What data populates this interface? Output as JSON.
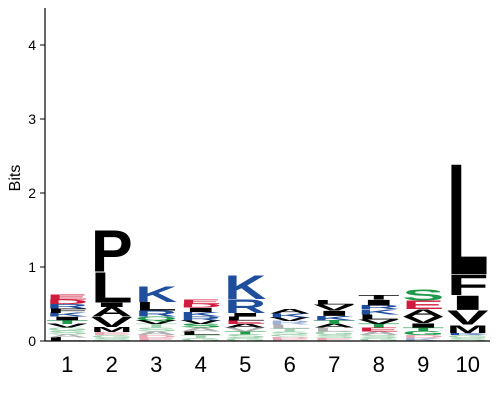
{
  "chart_data": {
    "type": "sequence-logo",
    "ylabel": "Bits",
    "ylim": [
      0,
      4.5
    ],
    "yticks": [
      "0",
      "1",
      "2",
      "3",
      "4"
    ],
    "positions": [
      "1",
      "2",
      "3",
      "4",
      "5",
      "6",
      "7",
      "8",
      "9",
      "10"
    ],
    "colors": {
      "hydrophobic": "#000000",
      "basic": "#1f4e9c",
      "acidic": "#d01c3c",
      "polar": "#1f9a4a",
      "faint_hydrophobic": "#b0b0b0",
      "faint_basic": "#9db0d6",
      "faint_acidic": "#eaa8b4",
      "faint_polar": "#9fd3af"
    },
    "stacks": [
      {
        "position": "1",
        "letters": [
          {
            "letter": "L",
            "bits": 0.05,
            "color": "#000000"
          },
          {
            "letter": "A",
            "bits": 0.04,
            "color": "#b0b0b0"
          },
          {
            "letter": "S",
            "bits": 0.05,
            "color": "#9fd3af"
          },
          {
            "letter": "G",
            "bits": 0.04,
            "color": "#9fd3af"
          },
          {
            "letter": "V",
            "bits": 0.05,
            "color": "#000000"
          },
          {
            "letter": "T",
            "bits": 0.05,
            "color": "#1f9a4a"
          },
          {
            "letter": "I",
            "bits": 0.05,
            "color": "#000000"
          },
          {
            "letter": "K",
            "bits": 0.05,
            "color": "#1f4e9c"
          },
          {
            "letter": "F",
            "bits": 0.06,
            "color": "#000000"
          },
          {
            "letter": "R",
            "bits": 0.06,
            "color": "#1f4e9c"
          },
          {
            "letter": "D",
            "bits": 0.06,
            "color": "#d01c3c"
          },
          {
            "letter": "E",
            "bits": 0.07,
            "color": "#d01c3c"
          }
        ]
      },
      {
        "position": "2",
        "letters": [
          {
            "letter": "S",
            "bits": 0.04,
            "color": "#9fd3af"
          },
          {
            "letter": "G",
            "bits": 0.04,
            "color": "#9fd3af"
          },
          {
            "letter": "E",
            "bits": 0.04,
            "color": "#eaa8b4"
          },
          {
            "letter": "M",
            "bits": 0.07,
            "color": "#000000"
          },
          {
            "letter": "V",
            "bits": 0.14,
            "color": "#000000"
          },
          {
            "letter": "A",
            "bits": 0.13,
            "color": "#000000"
          },
          {
            "letter": "I",
            "bits": 0.06,
            "color": "#000000"
          },
          {
            "letter": "L",
            "bits": 0.42,
            "color": "#000000"
          },
          {
            "letter": "P",
            "bits": 0.58,
            "color": "#000000"
          }
        ]
      },
      {
        "position": "3",
        "letters": [
          {
            "letter": "E",
            "bits": 0.04,
            "color": "#eaa8b4"
          },
          {
            "letter": "D",
            "bits": 0.04,
            "color": "#eaa8b4"
          },
          {
            "letter": "A",
            "bits": 0.05,
            "color": "#b0b0b0"
          },
          {
            "letter": "S",
            "bits": 0.05,
            "color": "#9fd3af"
          },
          {
            "letter": "T",
            "bits": 0.05,
            "color": "#9fd3af"
          },
          {
            "letter": "V",
            "bits": 0.05,
            "color": "#000000"
          },
          {
            "letter": "Q",
            "bits": 0.05,
            "color": "#1f9a4a"
          },
          {
            "letter": "R",
            "bits": 0.08,
            "color": "#1f4e9c"
          },
          {
            "letter": "L",
            "bits": 0.12,
            "color": "#000000"
          },
          {
            "letter": "K",
            "bits": 0.22,
            "color": "#1f4e9c"
          }
        ]
      },
      {
        "position": "4",
        "letters": [
          {
            "letter": "G",
            "bits": 0.04,
            "color": "#9fd3af"
          },
          {
            "letter": "T",
            "bits": 0.04,
            "color": "#9fd3af"
          },
          {
            "letter": "L",
            "bits": 0.05,
            "color": "#000000"
          },
          {
            "letter": "A",
            "bits": 0.05,
            "color": "#b0b0b0"
          },
          {
            "letter": "S",
            "bits": 0.05,
            "color": "#1f9a4a"
          },
          {
            "letter": "V",
            "bits": 0.05,
            "color": "#000000"
          },
          {
            "letter": "R",
            "bits": 0.05,
            "color": "#1f4e9c"
          },
          {
            "letter": "K",
            "bits": 0.06,
            "color": "#1f4e9c"
          },
          {
            "letter": "I",
            "bits": 0.06,
            "color": "#000000"
          },
          {
            "letter": "D",
            "bits": 0.05,
            "color": "#d01c3c"
          },
          {
            "letter": "E",
            "bits": 0.06,
            "color": "#d01c3c"
          }
        ]
      },
      {
        "position": "5",
        "letters": [
          {
            "letter": "G",
            "bits": 0.04,
            "color": "#9fd3af"
          },
          {
            "letter": "S",
            "bits": 0.05,
            "color": "#9fd3af"
          },
          {
            "letter": "T",
            "bits": 0.04,
            "color": "#1f9a4a"
          },
          {
            "letter": "V",
            "bits": 0.05,
            "color": "#b0b0b0"
          },
          {
            "letter": "A",
            "bits": 0.05,
            "color": "#000000"
          },
          {
            "letter": "E",
            "bits": 0.05,
            "color": "#d01c3c"
          },
          {
            "letter": "L",
            "bits": 0.05,
            "color": "#000000"
          },
          {
            "letter": "I",
            "bits": 0.05,
            "color": "#000000"
          },
          {
            "letter": "R",
            "bits": 0.19,
            "color": "#1f4e9c"
          },
          {
            "letter": "K",
            "bits": 0.33,
            "color": "#1f4e9c"
          }
        ]
      },
      {
        "position": "6",
        "letters": [
          {
            "letter": "E",
            "bits": 0.03,
            "color": "#eaa8b4"
          },
          {
            "letter": "D",
            "bits": 0.03,
            "color": "#eaa8b4"
          },
          {
            "letter": "G",
            "bits": 0.03,
            "color": "#9fd3af"
          },
          {
            "letter": "S",
            "bits": 0.04,
            "color": "#9fd3af"
          },
          {
            "letter": "T",
            "bits": 0.04,
            "color": "#9fd3af"
          },
          {
            "letter": "L",
            "bits": 0.05,
            "color": "#b0b0b0"
          },
          {
            "letter": "R",
            "bits": 0.05,
            "color": "#9db0d6"
          },
          {
            "letter": "V",
            "bits": 0.05,
            "color": "#000000"
          },
          {
            "letter": "K",
            "bits": 0.05,
            "color": "#1f4e9c"
          },
          {
            "letter": "A",
            "bits": 0.06,
            "color": "#000000"
          }
        ]
      },
      {
        "position": "7",
        "letters": [
          {
            "letter": "E",
            "bits": 0.04,
            "color": "#eaa8b4"
          },
          {
            "letter": "S",
            "bits": 0.04,
            "color": "#9fd3af"
          },
          {
            "letter": "G",
            "bits": 0.05,
            "color": "#9fd3af"
          },
          {
            "letter": "L",
            "bits": 0.05,
            "color": "#b0b0b0"
          },
          {
            "letter": "A",
            "bits": 0.05,
            "color": "#000000"
          },
          {
            "letter": "T",
            "bits": 0.05,
            "color": "#1f9a4a"
          },
          {
            "letter": "K",
            "bits": 0.06,
            "color": "#1f4e9c"
          },
          {
            "letter": "I",
            "bits": 0.07,
            "color": "#000000"
          },
          {
            "letter": "V",
            "bits": 0.08,
            "color": "#000000"
          },
          {
            "letter": "L",
            "bits": 0.06,
            "color": "#000000"
          }
        ]
      },
      {
        "position": "8",
        "letters": [
          {
            "letter": "G",
            "bits": 0.04,
            "color": "#9fd3af"
          },
          {
            "letter": "S",
            "bits": 0.04,
            "color": "#9fd3af"
          },
          {
            "letter": "A",
            "bits": 0.05,
            "color": "#b0b0b0"
          },
          {
            "letter": "E",
            "bits": 0.05,
            "color": "#d01c3c"
          },
          {
            "letter": "T",
            "bits": 0.05,
            "color": "#1f9a4a"
          },
          {
            "letter": "V",
            "bits": 0.06,
            "color": "#000000"
          },
          {
            "letter": "L",
            "bits": 0.07,
            "color": "#000000"
          },
          {
            "letter": "K",
            "bits": 0.07,
            "color": "#1f4e9c"
          },
          {
            "letter": "R",
            "bits": 0.05,
            "color": "#1f4e9c"
          },
          {
            "letter": "I",
            "bits": 0.08,
            "color": "#000000"
          },
          {
            "letter": "T",
            "bits": 0.06,
            "color": "#000000"
          }
        ]
      },
      {
        "position": "9",
        "letters": [
          {
            "letter": "K",
            "bits": 0.04,
            "color": "#9db0d6"
          },
          {
            "letter": "D",
            "bits": 0.04,
            "color": "#eaa8b4"
          },
          {
            "letter": "G",
            "bits": 0.05,
            "color": "#1f9a4a"
          },
          {
            "letter": "T",
            "bits": 0.05,
            "color": "#1f9a4a"
          },
          {
            "letter": "I",
            "bits": 0.06,
            "color": "#000000"
          },
          {
            "letter": "V",
            "bits": 0.09,
            "color": "#000000"
          },
          {
            "letter": "A",
            "bits": 0.1,
            "color": "#000000"
          },
          {
            "letter": "E",
            "bits": 0.12,
            "color": "#d01c3c"
          },
          {
            "letter": "S",
            "bits": 0.15,
            "color": "#1f9a4a"
          }
        ]
      },
      {
        "position": "10",
        "letters": [
          {
            "letter": "S",
            "bits": 0.04,
            "color": "#9fd3af"
          },
          {
            "letter": "G",
            "bits": 0.04,
            "color": "#9fd3af"
          },
          {
            "letter": "K",
            "bits": 0.03,
            "color": "#1f4e9c"
          },
          {
            "letter": "M",
            "bits": 0.11,
            "color": "#000000"
          },
          {
            "letter": "V",
            "bits": 0.2,
            "color": "#000000"
          },
          {
            "letter": "I",
            "bits": 0.2,
            "color": "#000000"
          },
          {
            "letter": "F",
            "bits": 0.28,
            "color": "#000000"
          },
          {
            "letter": "L",
            "bits": 1.55,
            "color": "#000000"
          }
        ]
      }
    ]
  }
}
